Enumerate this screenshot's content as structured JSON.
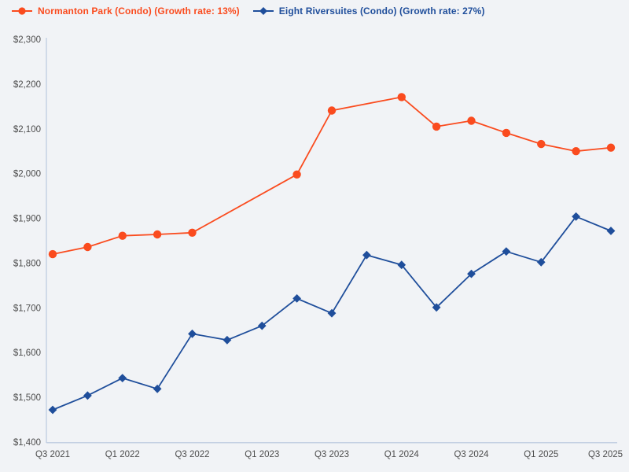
{
  "page": {
    "background": "#f1f3f6"
  },
  "colors": {
    "series_orange": "#fa4b1e",
    "series_blue": "#1f4e9b",
    "axis_line": "#c5d1e3",
    "tick_text": "#4d4d4d",
    "background": "#f1f3f6"
  },
  "legend": [
    {
      "label": "Normanton Park (Condo) (Growth rate: 13%)",
      "color": "#fa4b1e",
      "marker": "circle"
    },
    {
      "label": "Eight Riversuites (Condo) (Growth rate: 27%)",
      "color": "#1f4e9b",
      "marker": "diamond"
    }
  ],
  "chart_data": {
    "type": "line",
    "title": "",
    "xlabel": "",
    "ylabel": "",
    "grid": false,
    "legend_position": "top-left",
    "ylim": [
      1400,
      2300
    ],
    "y_tick_step": 100,
    "y_tick_prefix": "$",
    "y_tick_labels": [
      "$1,400",
      "$1,500",
      "$1,600",
      "$1,700",
      "$1,800",
      "$1,900",
      "$2,000",
      "$2,100",
      "$2,200",
      "$2,300"
    ],
    "categories": [
      "Q3 2021",
      "Q4 2021",
      "Q1 2022",
      "Q2 2022",
      "Q3 2022",
      "Q4 2022",
      "Q1 2023",
      "Q2 2023",
      "Q3 2023",
      "Q4 2023",
      "Q1 2024",
      "Q2 2024",
      "Q3 2024",
      "Q4 2024",
      "Q1 2025",
      "Q2 2025",
      "Q3 2025"
    ],
    "x_tick_labels": [
      "Q3 2021",
      "Q1 2022",
      "Q3 2022",
      "Q1 2023",
      "Q3 2023",
      "Q1 2024",
      "Q3 2024",
      "Q1 2025",
      "Q3 2025"
    ],
    "series": [
      {
        "name": "Normanton Park (Condo)",
        "growth_rate": "13%",
        "color": "#fa4b1e",
        "marker": "circle",
        "values": [
          1820,
          1836,
          1861,
          1864,
          1868,
          null,
          null,
          1998,
          2141,
          null,
          2171,
          2105,
          2118,
          2091,
          2066,
          2050,
          2058
        ]
      },
      {
        "name": "Eight Riversuites (Condo)",
        "growth_rate": "27%",
        "color": "#1f4e9b",
        "marker": "diamond",
        "values": [
          1472,
          1504,
          1543,
          1519,
          1642,
          1628,
          1660,
          1721,
          1688,
          1818,
          1796,
          1701,
          1776,
          1826,
          1802,
          1904,
          1872
        ]
      }
    ]
  }
}
